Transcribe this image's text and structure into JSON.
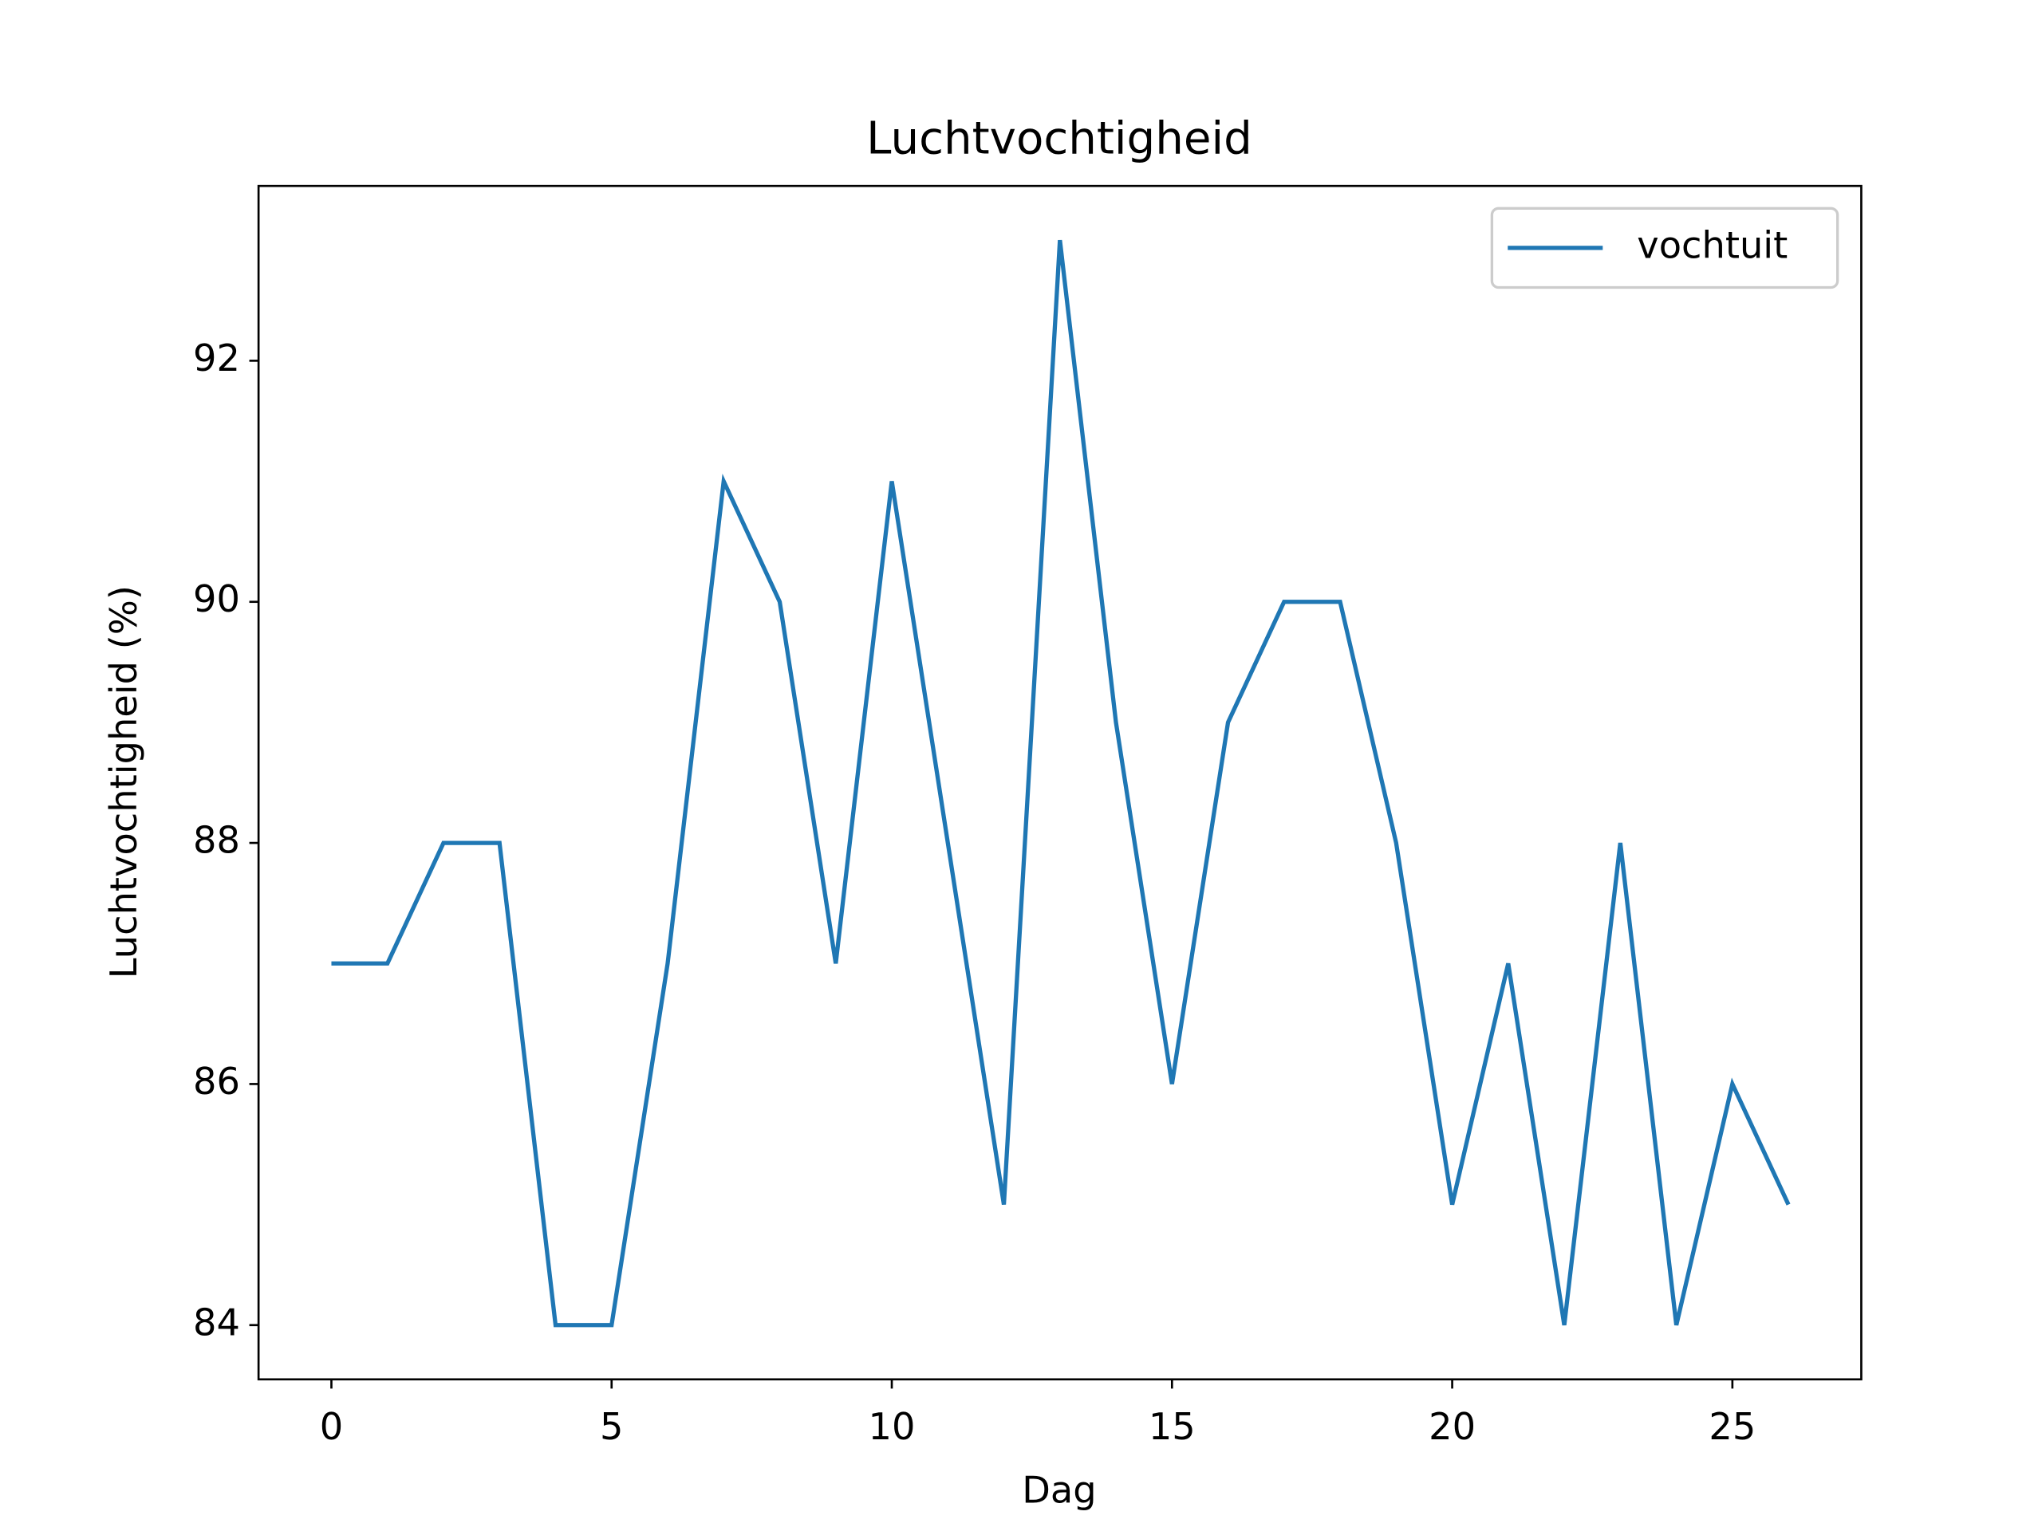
{
  "chart_data": {
    "type": "line",
    "title": "Luchtvochtigheid",
    "x_label": "Dag",
    "y_label": "Luchtvochtigheid (%)",
    "x": [
      0,
      1,
      2,
      3,
      4,
      5,
      6,
      7,
      8,
      9,
      10,
      11,
      12,
      13,
      14,
      15,
      16,
      17,
      18,
      19,
      20,
      21,
      22,
      23,
      24,
      25,
      26
    ],
    "series": [
      {
        "name": "vochtuit",
        "color": "#1f77b4",
        "values": [
          87,
          87,
          88,
          88,
          84,
          84,
          87,
          91,
          90,
          87,
          91,
          88,
          85,
          93,
          89,
          86,
          89,
          90,
          90,
          88,
          85,
          87,
          84,
          88,
          84,
          86,
          85
        ]
      }
    ],
    "xlim": [
      -1.3,
      27.3
    ],
    "ylim": [
      83.55,
      93.45
    ],
    "xticks": [
      0,
      5,
      10,
      15,
      20,
      25
    ],
    "yticks": [
      84,
      86,
      88,
      90,
      92
    ],
    "grid": false,
    "legend": "upper right"
  }
}
